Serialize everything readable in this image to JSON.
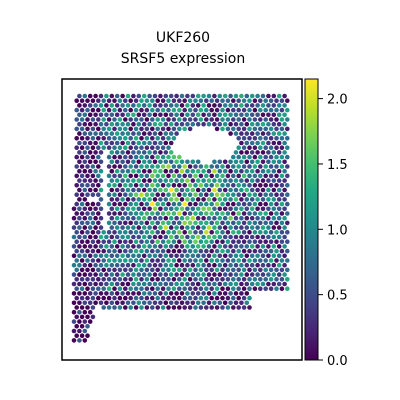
{
  "chart_data": {
    "type": "scatter",
    "title_line1": "UKF260",
    "title_line2": "SRSF5 expression",
    "xlabel": "",
    "ylabel": "",
    "colorbar": {
      "colormap": "viridis",
      "vmin": 0.0,
      "vmax": 2.15,
      "ticks": [
        0.0,
        0.5,
        1.0,
        1.5,
        2.0
      ],
      "tick_labels": [
        "0.0",
        "0.5",
        "1.0",
        "1.5",
        "2.0"
      ]
    },
    "colors": {
      "viridis_low": "#440154",
      "viridis_mid": "#21918c",
      "viridis_high": "#fde725",
      "background": "#ffffff"
    },
    "notes": "Spatial transcriptomics spot plot of SRSF5 expression; values 0.0-2.15"
  }
}
